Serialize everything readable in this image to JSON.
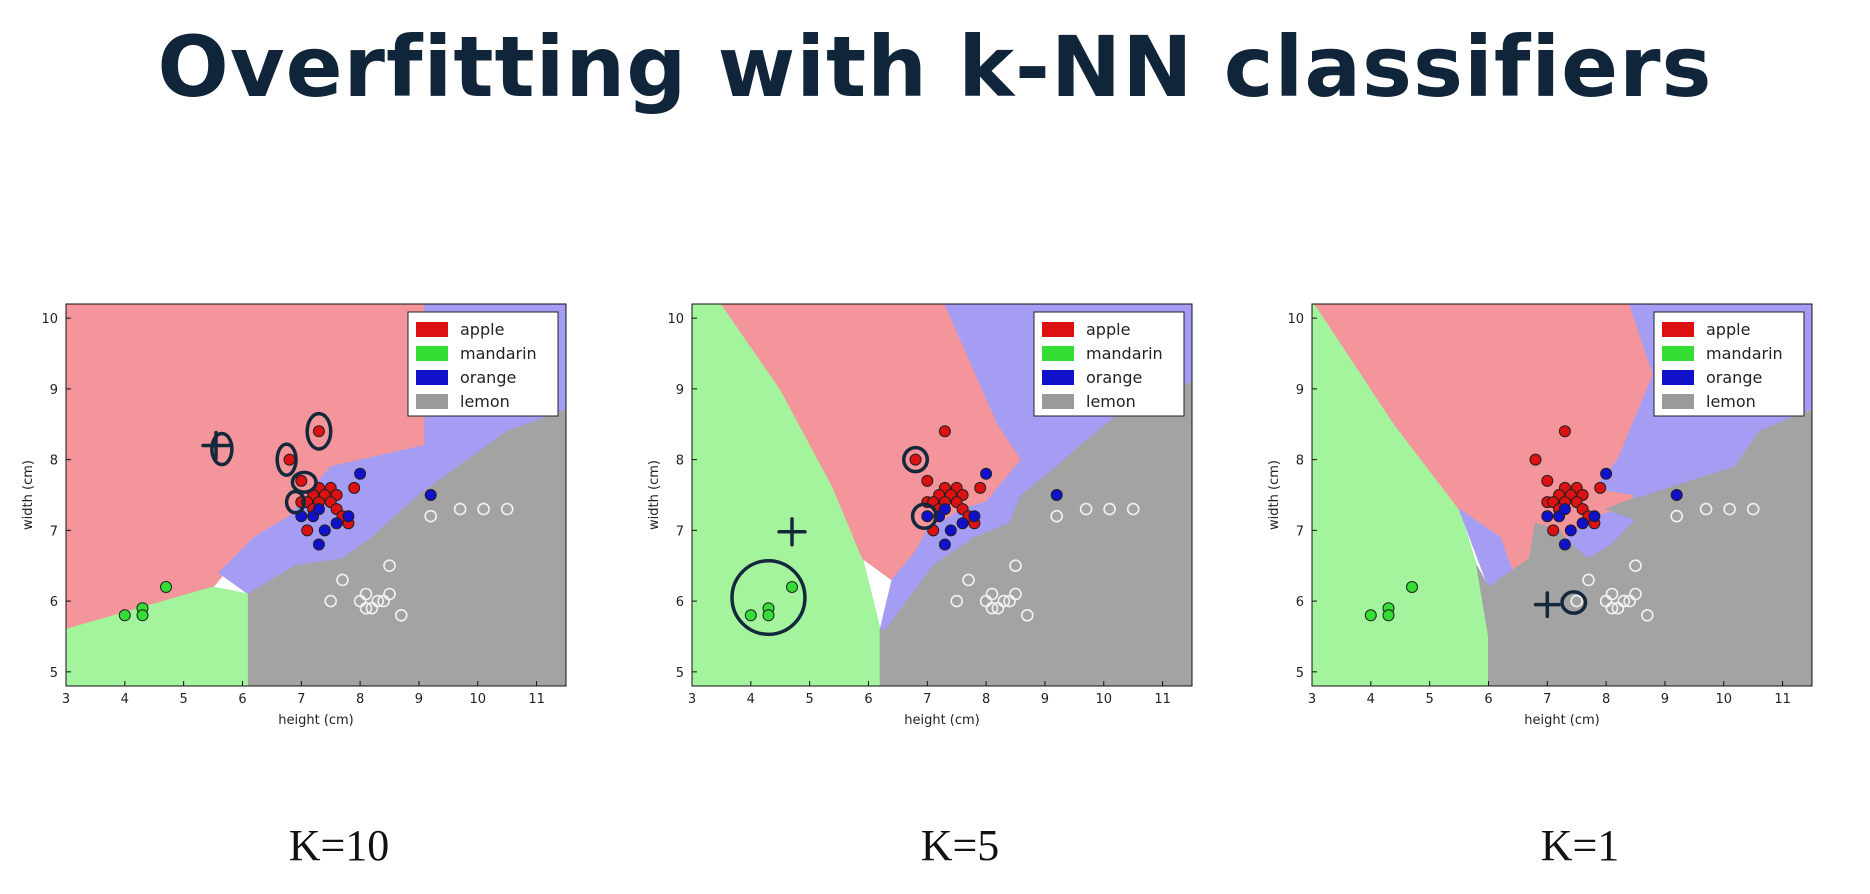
{
  "slide": {
    "title": "Overfitting with k-NN classifiers"
  },
  "colors": {
    "apple": "#dd1111",
    "mandarin": "#33dd33",
    "orange": "#1111cc",
    "lemon": "#9a9a9a",
    "apple_region": "#f4959b",
    "mandarin_region": "#a4f49e",
    "orange_region": "#a59df4",
    "lemon_region": "#a3a3a3",
    "pen": "#14283c"
  },
  "chart_data": [
    {
      "type": "scatter",
      "caption": "K=10",
      "xlabel": "height (cm)",
      "ylabel": "width (cm)",
      "xlim": [
        3,
        11.5
      ],
      "ylim": [
        4.8,
        10.2
      ],
      "xticks": [
        3,
        4,
        5,
        6,
        7,
        8,
        9,
        10,
        11
      ],
      "yticks": [
        5,
        6,
        7,
        8,
        9,
        10
      ],
      "legend": {
        "position": "top-right",
        "entries": [
          "apple",
          "mandarin",
          "orange",
          "lemon"
        ]
      },
      "regions": [
        {
          "class": "apple",
          "polygon": [
            [
              3,
              10.2
            ],
            [
              9.1,
              10.2
            ],
            [
              9.1,
              8.2
            ],
            [
              7.5,
              7.9
            ],
            [
              6.8,
              7.2
            ],
            [
              6.2,
              6.9
            ],
            [
              5.5,
              6.2
            ],
            [
              3,
              5.6
            ]
          ]
        },
        {
          "class": "orange",
          "polygon": [
            [
              9.1,
              10.2
            ],
            [
              11.5,
              10.2
            ],
            [
              11.5,
              8.7
            ],
            [
              10.5,
              8.4
            ],
            [
              9.0,
              7.5
            ],
            [
              8.6,
              7.2
            ],
            [
              8.2,
              6.9
            ],
            [
              7.7,
              6.6
            ],
            [
              6.9,
              6.5
            ],
            [
              6.1,
              6.1
            ],
            [
              5.6,
              6.4
            ],
            [
              6.2,
              6.9
            ],
            [
              6.8,
              7.2
            ],
            [
              7.5,
              7.9
            ],
            [
              9.1,
              8.2
            ]
          ]
        },
        {
          "class": "mandarin",
          "polygon": [
            [
              3,
              5.6
            ],
            [
              5.5,
              6.2
            ],
            [
              6.1,
              6.1
            ],
            [
              6.1,
              4.8
            ],
            [
              3,
              4.8
            ]
          ]
        },
        {
          "class": "lemon",
          "polygon": [
            [
              11.5,
              8.7
            ],
            [
              10.5,
              8.4
            ],
            [
              9.0,
              7.5
            ],
            [
              8.6,
              7.2
            ],
            [
              8.2,
              6.9
            ],
            [
              7.7,
              6.6
            ],
            [
              6.9,
              6.5
            ],
            [
              6.1,
              6.1
            ],
            [
              6.1,
              4.8
            ],
            [
              11.5,
              4.8
            ]
          ]
        }
      ],
      "annotations": [
        {
          "shape": "ellipse",
          "x": 7.3,
          "y": 8.4,
          "rx": 0.2,
          "ry": 0.25
        },
        {
          "shape": "ellipse",
          "x": 6.75,
          "y": 8.0,
          "rx": 0.16,
          "ry": 0.22
        },
        {
          "shape": "ellipse",
          "x": 7.05,
          "y": 7.68,
          "rx": 0.2,
          "ry": 0.14
        },
        {
          "shape": "ellipse",
          "x": 6.9,
          "y": 7.4,
          "rx": 0.15,
          "ry": 0.15
        },
        {
          "shape": "ellipse",
          "x": 5.65,
          "y": 8.15,
          "rx": 0.17,
          "ry": 0.22
        },
        {
          "shape": "plus",
          "x": 5.55,
          "y": 8.2,
          "s": 0.22
        }
      ]
    },
    {
      "type": "scatter",
      "caption": "K=5",
      "xlabel": "height (cm)",
      "ylabel": "width (cm)",
      "xlim": [
        3,
        11.5
      ],
      "ylim": [
        4.8,
        10.2
      ],
      "xticks": [
        3,
        4,
        5,
        6,
        7,
        8,
        9,
        10,
        11
      ],
      "yticks": [
        5,
        6,
        7,
        8,
        9,
        10
      ],
      "legend": {
        "position": "top-right",
        "entries": [
          "apple",
          "mandarin",
          "orange",
          "lemon"
        ]
      },
      "regions": [
        {
          "class": "mandarin",
          "polygon": [
            [
              3,
              10.2
            ],
            [
              3.5,
              10.2
            ],
            [
              4.5,
              9.0
            ],
            [
              5.4,
              7.6
            ],
            [
              5.9,
              6.6
            ],
            [
              6.2,
              5.6
            ],
            [
              6.2,
              4.8
            ],
            [
              3,
              4.8
            ]
          ]
        },
        {
          "class": "apple",
          "polygon": [
            [
              3.5,
              10.2
            ],
            [
              7.3,
              10.2
            ],
            [
              8.2,
              8.5
            ],
            [
              8.6,
              8.0
            ],
            [
              8.0,
              7.4
            ],
            [
              7.6,
              7.3
            ],
            [
              7.0,
              7.0
            ],
            [
              6.8,
              6.7
            ],
            [
              6.4,
              6.3
            ],
            [
              5.9,
              6.6
            ],
            [
              5.4,
              7.6
            ],
            [
              4.5,
              9.0
            ]
          ]
        },
        {
          "class": "orange",
          "polygon": [
            [
              7.3,
              10.2
            ],
            [
              11.5,
              10.2
            ],
            [
              11.5,
              9.1
            ],
            [
              10.2,
              8.6
            ],
            [
              9.6,
              8.2
            ],
            [
              9.2,
              7.9
            ],
            [
              8.6,
              7.5
            ],
            [
              8.4,
              7.1
            ],
            [
              7.8,
              6.9
            ],
            [
              7.1,
              6.5
            ],
            [
              6.3,
              5.6
            ],
            [
              6.2,
              5.6
            ],
            [
              6.4,
              6.3
            ],
            [
              6.8,
              6.7
            ],
            [
              7.0,
              7.0
            ],
            [
              7.6,
              7.3
            ],
            [
              8.0,
              7.4
            ],
            [
              8.6,
              8.0
            ],
            [
              8.2,
              8.5
            ]
          ]
        },
        {
          "class": "lemon",
          "polygon": [
            [
              11.5,
              9.1
            ],
            [
              10.2,
              8.6
            ],
            [
              9.6,
              8.2
            ],
            [
              9.2,
              7.9
            ],
            [
              8.6,
              7.5
            ],
            [
              8.4,
              7.1
            ],
            [
              7.8,
              6.9
            ],
            [
              7.1,
              6.5
            ],
            [
              6.3,
              5.6
            ],
            [
              6.2,
              5.6
            ],
            [
              6.2,
              4.8
            ],
            [
              11.5,
              4.8
            ]
          ]
        }
      ],
      "annotations": [
        {
          "shape": "ellipse",
          "x": 6.8,
          "y": 8.0,
          "rx": 0.2,
          "ry": 0.17
        },
        {
          "shape": "ellipse",
          "x": 6.95,
          "y": 7.2,
          "rx": 0.2,
          "ry": 0.17
        },
        {
          "shape": "ellipse",
          "x": 4.3,
          "y": 6.05,
          "rx": 0.62,
          "ry": 0.52
        },
        {
          "shape": "plus",
          "x": 4.7,
          "y": 6.98,
          "s": 0.22
        }
      ]
    },
    {
      "type": "scatter",
      "caption": "K=1",
      "xlabel": "height (cm)",
      "ylabel": "width (cm)",
      "xlim": [
        3,
        11.5
      ],
      "ylim": [
        4.8,
        10.2
      ],
      "xticks": [
        3,
        4,
        5,
        6,
        7,
        8,
        9,
        10,
        11
      ],
      "yticks": [
        5,
        6,
        7,
        8,
        9,
        10
      ],
      "legend": {
        "position": "top-right",
        "entries": [
          "apple",
          "mandarin",
          "orange",
          "lemon"
        ]
      },
      "regions": [
        {
          "class": "mandarin",
          "polygon": [
            [
              3,
              10.2
            ],
            [
              3.05,
              10.2
            ],
            [
              4.4,
              8.5
            ],
            [
              5.5,
              7.3
            ],
            [
              5.8,
              6.5
            ],
            [
              6.0,
              5.5
            ],
            [
              6.0,
              4.8
            ],
            [
              3,
              4.8
            ]
          ]
        },
        {
          "class": "apple",
          "polygon": [
            [
              3.05,
              10.2
            ],
            [
              8.4,
              10.2
            ],
            [
              8.8,
              9.2
            ],
            [
              8.2,
              8.0
            ],
            [
              7.8,
              7.6
            ],
            [
              8.5,
              7.5
            ],
            [
              8.3,
              7.3
            ],
            [
              7.8,
              7.2
            ],
            [
              7.5,
              7.0
            ],
            [
              7.2,
              6.8
            ],
            [
              6.9,
              6.3
            ],
            [
              6.5,
              6.2
            ],
            [
              6.2,
              6.9
            ],
            [
              5.5,
              7.3
            ],
            [
              4.4,
              8.5
            ]
          ]
        },
        {
          "class": "orange",
          "polygon": [
            [
              8.4,
              10.2
            ],
            [
              11.5,
              10.2
            ],
            [
              11.5,
              8.7
            ],
            [
              10.6,
              8.4
            ],
            [
              10.2,
              7.9
            ],
            [
              8.7,
              7.5
            ],
            [
              8.3,
              7.4
            ],
            [
              8.0,
              7.3
            ],
            [
              8.5,
              7.15
            ],
            [
              8.1,
              6.8
            ],
            [
              7.7,
              6.6
            ],
            [
              7.4,
              6.8
            ],
            [
              7.2,
              7.0
            ],
            [
              6.8,
              7.1
            ],
            [
              6.7,
              6.6
            ],
            [
              6.0,
              6.2
            ],
            [
              5.5,
              7.3
            ],
            [
              6.2,
              6.9
            ],
            [
              6.5,
              6.2
            ],
            [
              6.9,
              6.3
            ],
            [
              7.2,
              6.8
            ],
            [
              7.5,
              7.0
            ],
            [
              7.8,
              7.2
            ],
            [
              8.3,
              7.3
            ],
            [
              8.5,
              7.5
            ],
            [
              7.8,
              7.6
            ],
            [
              8.2,
              8.0
            ],
            [
              8.8,
              9.2
            ]
          ]
        },
        {
          "class": "lemon",
          "polygon": [
            [
              11.5,
              8.7
            ],
            [
              10.6,
              8.4
            ],
            [
              10.2,
              7.9
            ],
            [
              8.7,
              7.5
            ],
            [
              8.3,
              7.4
            ],
            [
              8.0,
              7.3
            ],
            [
              8.5,
              7.15
            ],
            [
              8.1,
              6.8
            ],
            [
              7.7,
              6.6
            ],
            [
              7.4,
              6.8
            ],
            [
              7.2,
              7.0
            ],
            [
              6.8,
              7.1
            ],
            [
              6.7,
              6.6
            ],
            [
              6.0,
              6.2
            ],
            [
              5.8,
              6.5
            ],
            [
              6.0,
              5.5
            ],
            [
              6.0,
              4.8
            ],
            [
              11.5,
              4.8
            ]
          ]
        }
      ],
      "annotations": [
        {
          "shape": "ellipse",
          "x": 7.45,
          "y": 5.98,
          "rx": 0.2,
          "ry": 0.15
        },
        {
          "shape": "plus",
          "x": 7.0,
          "y": 5.95,
          "s": 0.2
        }
      ]
    }
  ],
  "points": [
    {
      "class": "apple",
      "x": 7.3,
      "y": 8.4
    },
    {
      "class": "apple",
      "x": 6.8,
      "y": 8.0
    },
    {
      "class": "apple",
      "x": 7.0,
      "y": 7.7
    },
    {
      "class": "apple",
      "x": 7.3,
      "y": 7.6
    },
    {
      "class": "apple",
      "x": 7.5,
      "y": 7.6
    },
    {
      "class": "apple",
      "x": 7.9,
      "y": 7.6
    },
    {
      "class": "apple",
      "x": 7.2,
      "y": 7.5
    },
    {
      "class": "apple",
      "x": 7.4,
      "y": 7.5
    },
    {
      "class": "apple",
      "x": 7.6,
      "y": 7.5
    },
    {
      "class": "apple",
      "x": 7.0,
      "y": 7.4
    },
    {
      "class": "apple",
      "x": 7.1,
      "y": 7.4
    },
    {
      "class": "apple",
      "x": 7.3,
      "y": 7.4
    },
    {
      "class": "apple",
      "x": 7.5,
      "y": 7.4
    },
    {
      "class": "apple",
      "x": 7.2,
      "y": 7.3
    },
    {
      "class": "apple",
      "x": 7.6,
      "y": 7.3
    },
    {
      "class": "apple",
      "x": 7.7,
      "y": 7.2
    },
    {
      "class": "apple",
      "x": 7.8,
      "y": 7.1
    },
    {
      "class": "apple",
      "x": 7.1,
      "y": 7.0
    },
    {
      "class": "orange",
      "x": 8.0,
      "y": 7.8
    },
    {
      "class": "orange",
      "x": 9.2,
      "y": 7.5
    },
    {
      "class": "orange",
      "x": 7.0,
      "y": 7.2
    },
    {
      "class": "orange",
      "x": 7.2,
      "y": 7.2
    },
    {
      "class": "orange",
      "x": 7.3,
      "y": 7.3
    },
    {
      "class": "orange",
      "x": 7.8,
      "y": 7.2
    },
    {
      "class": "orange",
      "x": 7.4,
      "y": 7.0
    },
    {
      "class": "orange",
      "x": 7.6,
      "y": 7.1
    },
    {
      "class": "orange",
      "x": 7.3,
      "y": 6.8
    },
    {
      "class": "mandarin",
      "x": 4.7,
      "y": 6.2
    },
    {
      "class": "mandarin",
      "x": 4.3,
      "y": 5.9
    },
    {
      "class": "mandarin",
      "x": 4.3,
      "y": 5.8
    },
    {
      "class": "mandarin",
      "x": 4.0,
      "y": 5.8
    },
    {
      "class": "lemon",
      "x": 9.2,
      "y": 7.2
    },
    {
      "class": "lemon",
      "x": 9.7,
      "y": 7.3
    },
    {
      "class": "lemon",
      "x": 10.1,
      "y": 7.3
    },
    {
      "class": "lemon",
      "x": 10.5,
      "y": 7.3
    },
    {
      "class": "lemon",
      "x": 8.5,
      "y": 6.5
    },
    {
      "class": "lemon",
      "x": 7.7,
      "y": 6.3
    },
    {
      "class": "lemon",
      "x": 8.1,
      "y": 6.1
    },
    {
      "class": "lemon",
      "x": 8.0,
      "y": 6.0
    },
    {
      "class": "lemon",
      "x": 8.3,
      "y": 6.0
    },
    {
      "class": "lemon",
      "x": 8.4,
      "y": 6.0
    },
    {
      "class": "lemon",
      "x": 8.5,
      "y": 6.1
    },
    {
      "class": "lemon",
      "x": 7.5,
      "y": 6.0
    },
    {
      "class": "lemon",
      "x": 8.2,
      "y": 5.9
    },
    {
      "class": "lemon",
      "x": 8.1,
      "y": 5.9
    },
    {
      "class": "lemon",
      "x": 8.7,
      "y": 5.8
    }
  ]
}
